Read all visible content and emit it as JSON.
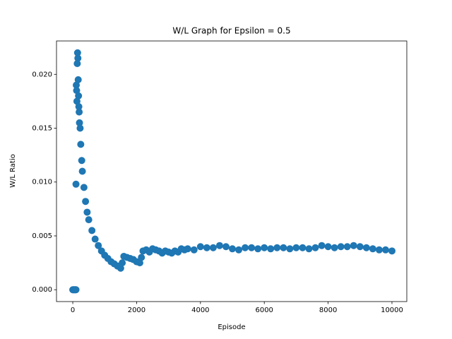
{
  "chart_data": {
    "type": "scatter",
    "title": "W/L Graph for Epsilon = 0.5",
    "x_label": "Episode",
    "y_label": "W/L Ratio",
    "x": [
      0,
      20,
      40,
      60,
      80,
      100,
      100,
      110,
      120,
      130,
      140,
      150,
      160,
      170,
      180,
      190,
      200,
      210,
      230,
      250,
      280,
      300,
      350,
      400,
      450,
      500,
      600,
      700,
      800,
      900,
      1000,
      1100,
      1200,
      1300,
      1400,
      1500,
      1550,
      1600,
      1700,
      1800,
      1900,
      2000,
      2100,
      2150,
      2200,
      2300,
      2400,
      2500,
      2600,
      2700,
      2800,
      2900,
      3000,
      3100,
      3200,
      3300,
      3400,
      3500,
      3600,
      3800,
      4000,
      4200,
      4400,
      4600,
      4800,
      5000,
      5200,
      5400,
      5600,
      5800,
      6000,
      6200,
      6400,
      6600,
      6800,
      7000,
      7200,
      7400,
      7600,
      7800,
      8000,
      8200,
      8400,
      8600,
      8800,
      9000,
      9200,
      9400,
      9600,
      9800,
      10000
    ],
    "series": [
      {
        "color": "#1f77b4",
        "values": [
          0,
          0,
          0,
          0,
          0,
          0,
          0.0098,
          0.019,
          0.0185,
          0.0175,
          0.021,
          0.022,
          0.0215,
          0.0195,
          0.018,
          0.017,
          0.0165,
          0.0155,
          0.015,
          0.0135,
          0.012,
          0.011,
          0.0095,
          0.0082,
          0.0072,
          0.0065,
          0.0055,
          0.0047,
          0.0041,
          0.0036,
          0.0032,
          0.0029,
          0.0026,
          0.0024,
          0.0022,
          0.002,
          0.0025,
          0.0031,
          0.003,
          0.0029,
          0.0028,
          0.0026,
          0.0025,
          0.003,
          0.0036,
          0.0037,
          0.0035,
          0.0038,
          0.0037,
          0.0036,
          0.0034,
          0.0036,
          0.0035,
          0.0034,
          0.0036,
          0.0035,
          0.0038,
          0.0037,
          0.0038,
          0.0037,
          0.004,
          0.0039,
          0.0039,
          0.0041,
          0.004,
          0.0038,
          0.0037,
          0.0039,
          0.0039,
          0.0038,
          0.0039,
          0.0038,
          0.0039,
          0.0039,
          0.0038,
          0.0039,
          0.0039,
          0.0038,
          0.0039,
          0.0041,
          0.004,
          0.0039,
          0.004,
          0.004,
          0.0041,
          0.004,
          0.0039,
          0.0038,
          0.0037,
          0.0037,
          0.0036
        ]
      }
    ],
    "xlim": [
      -510,
      10465
    ],
    "ylim": [
      -0.0011,
      0.0231
    ],
    "xticks": [
      0,
      2000,
      4000,
      6000,
      8000,
      10000
    ],
    "yticks": [
      {
        "value": 0,
        "label": "0.000"
      },
      {
        "value": 0.005,
        "label": "0.005"
      },
      {
        "value": 0.01,
        "label": "0.010"
      },
      {
        "value": 0.015,
        "label": "0.015"
      },
      {
        "value": 0.02,
        "label": "0.020"
      }
    ],
    "grid": false
  }
}
